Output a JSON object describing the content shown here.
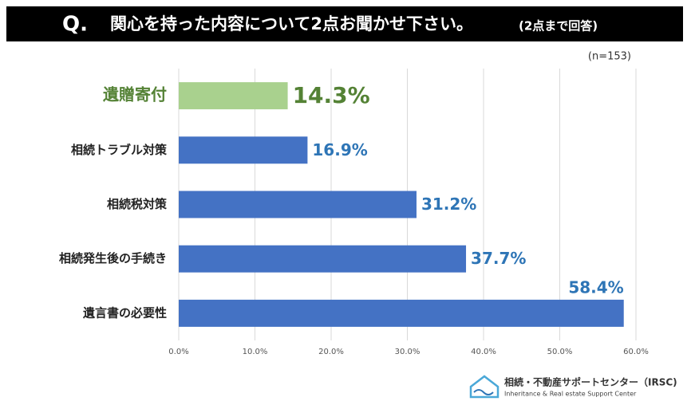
{
  "chart_data": {
    "type": "bar",
    "title_prefix": "Q.",
    "title": "関心を持った内容について2点お聞かせ下さい。",
    "subtitle": "(2点まで回答)",
    "note": "(n=153)",
    "categories": [
      "遺贈寄付",
      "相続トラブル対策",
      "相続税対策",
      "相続発生後の手続き",
      "遺言書の必要性"
    ],
    "values": [
      14.3,
      16.9,
      31.2,
      37.7,
      58.4
    ],
    "value_labels": [
      "14.3%",
      "16.9%",
      "31.2%",
      "37.7%",
      "58.4%"
    ],
    "colors": [
      "#a9d18e",
      "#4472c4",
      "#4472c4",
      "#4472c4",
      "#4472c4"
    ],
    "label_colors": [
      "#548235",
      "#2e75b6",
      "#2e75b6",
      "#2e75b6",
      "#2e75b6"
    ],
    "xlim": [
      0,
      60
    ],
    "xticks": [
      {
        "value": 0,
        "label": "0.0%"
      },
      {
        "value": 10,
        "label": "10.0%"
      },
      {
        "value": 20,
        "label": "20.0%"
      },
      {
        "value": 30,
        "label": "30.0%"
      },
      {
        "value": 40,
        "label": "40.0%"
      },
      {
        "value": 50,
        "label": "50.0%"
      },
      {
        "value": 60,
        "label": "60.0%"
      }
    ],
    "grid": true,
    "logo": {
      "name": "相続・不動産サポートセンター（IRSC)",
      "tagline": "Inheritance & Real estate Support Center"
    }
  }
}
